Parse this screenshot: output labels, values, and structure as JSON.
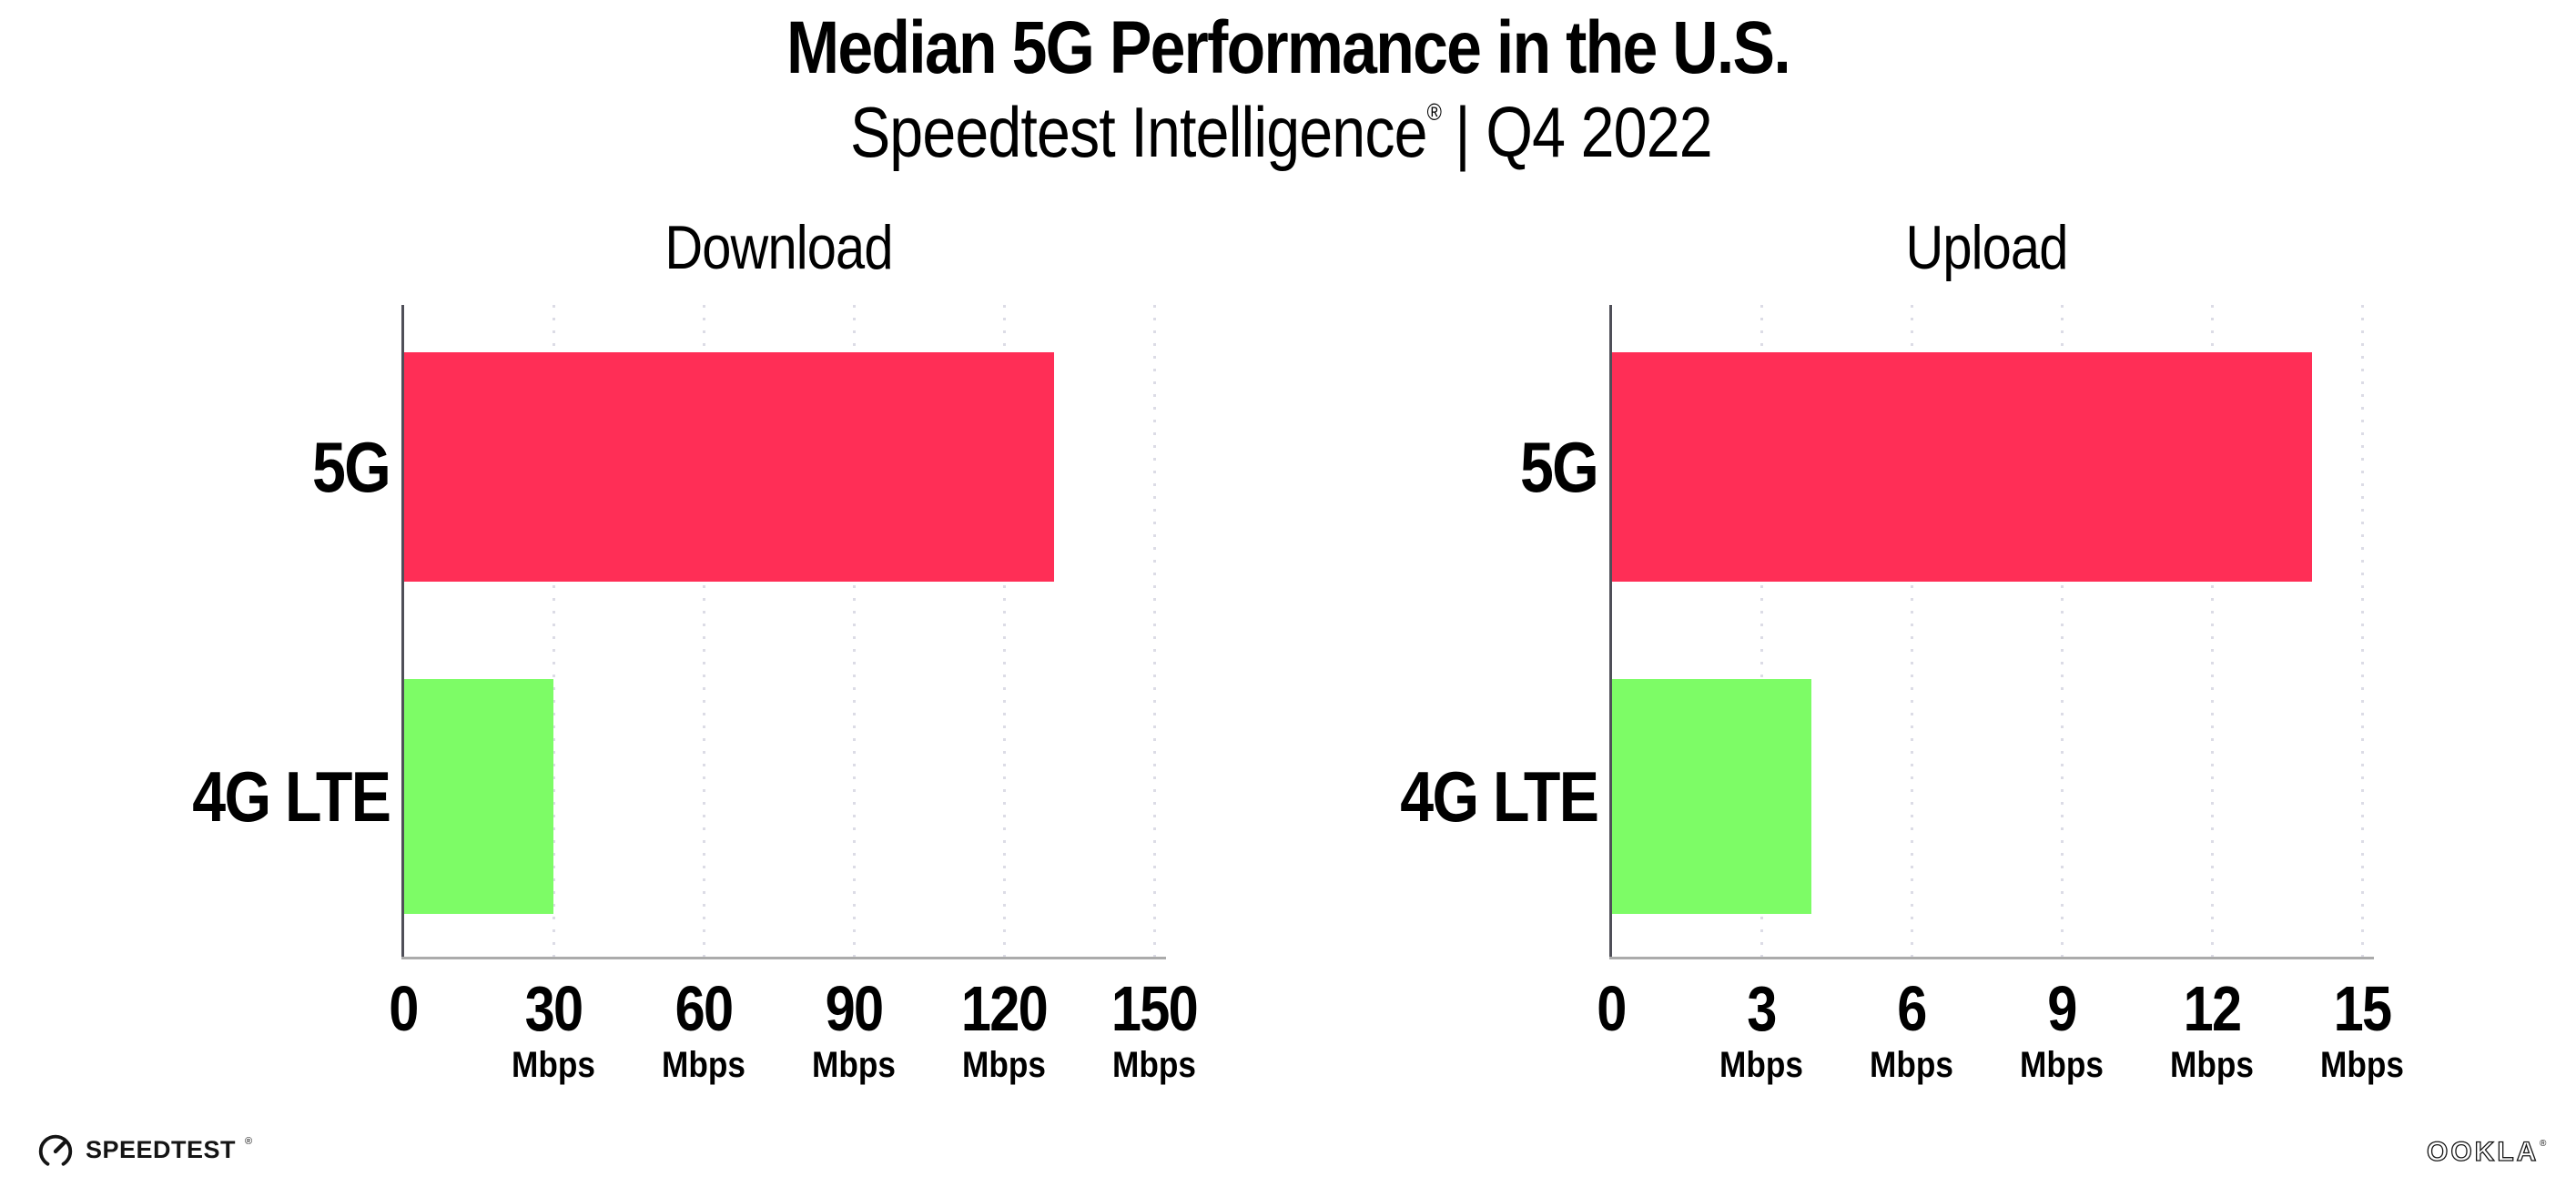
{
  "header": {
    "title": "Median 5G Performance in the U.S.",
    "subtitle_brand": "Speedtest Intelligence",
    "subtitle_reg": "®",
    "subtitle_rest": "| Q4 2022"
  },
  "chart_data": [
    {
      "type": "bar",
      "orientation": "horizontal",
      "title": "Download",
      "categories": [
        "5G",
        "4G LTE"
      ],
      "values": [
        130,
        30
      ],
      "unit": "Mbps",
      "xlim": [
        0,
        150
      ],
      "xticks": [
        0,
        30,
        60,
        90,
        120,
        150
      ],
      "colors": [
        "#ff2e56",
        "#7dfc66"
      ],
      "grid": "dotted-vertical-gridlines",
      "legend": "none"
    },
    {
      "type": "bar",
      "orientation": "horizontal",
      "title": "Upload",
      "categories": [
        "5G",
        "4G LTE"
      ],
      "values": [
        14,
        4
      ],
      "unit": "Mbps",
      "xlim": [
        0,
        15
      ],
      "xticks": [
        0,
        3,
        6,
        9,
        12,
        15
      ],
      "colors": [
        "#ff2e56",
        "#7dfc66"
      ],
      "grid": "dotted-vertical-gridlines",
      "legend": "none"
    }
  ],
  "style_colors": {
    "bar_5g": "#ff2e56",
    "bar_4g_lte": "#7dfc66",
    "axis_y_line": "#4f4f58",
    "axis_x_line": "#ababab",
    "gridline": "#dcdce6",
    "text": "#000000",
    "background": "#ffffff"
  },
  "footer": {
    "speedtest_logo_text": "SPEEDTEST",
    "speedtest_reg": "®",
    "ookla_logo_text": "OOKLA",
    "ookla_reg": "®"
  }
}
